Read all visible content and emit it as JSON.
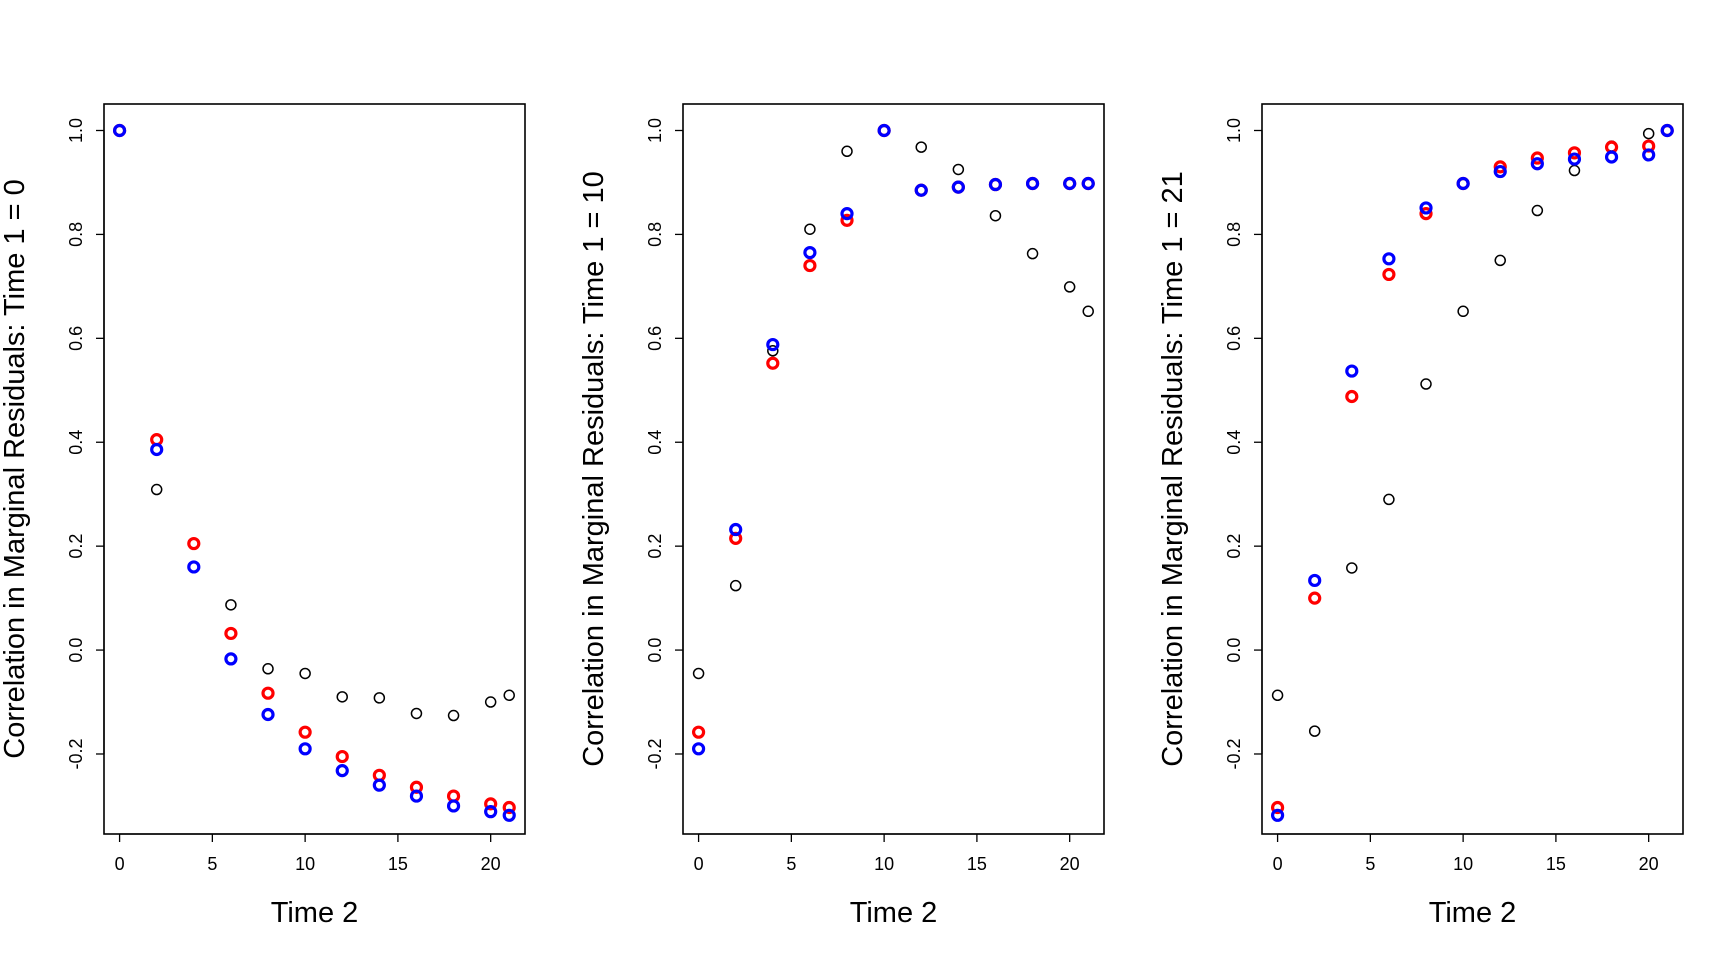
{
  "chart_data": [
    {
      "type": "scatter",
      "xlabel": "Time 2",
      "ylabel": "Correlation in Marginal Residuals: Time 1 = 0",
      "xlim": [
        -0.84,
        21.85
      ],
      "ylim": [
        -0.354,
        1.051
      ],
      "xticks": [
        0,
        5,
        10,
        15,
        20
      ],
      "yticks": [
        -0.2,
        0.0,
        0.2,
        0.4,
        0.6,
        0.8,
        1.0
      ],
      "ytick_labels": [
        "-0.2",
        "0.0",
        "0.2",
        "0.4",
        "0.6",
        "0.8",
        "1.0"
      ],
      "grid": false,
      "x": [
        0,
        2,
        4,
        6,
        8,
        10,
        12,
        14,
        16,
        18,
        20,
        21
      ],
      "series": [
        {
          "color": "#000000",
          "values": [
            1.0,
            0.309,
            0.16,
            0.087,
            -0.036,
            -0.045,
            -0.09,
            -0.092,
            -0.122,
            -0.126,
            -0.1,
            -0.087
          ]
        },
        {
          "color": "#ff0000",
          "values": [
            1.0,
            0.405,
            0.205,
            0.032,
            -0.083,
            -0.158,
            -0.205,
            -0.241,
            -0.264,
            -0.281,
            -0.296,
            -0.303
          ]
        },
        {
          "color": "#0000ff",
          "values": [
            1.0,
            0.386,
            0.16,
            -0.017,
            -0.124,
            -0.19,
            -0.232,
            -0.26,
            -0.281,
            -0.3,
            -0.311,
            -0.318
          ]
        }
      ]
    },
    {
      "type": "scatter",
      "xlabel": "Time 2",
      "ylabel": "Correlation in Marginal Residuals: Time 1 = 10",
      "xlim": [
        -0.84,
        21.85
      ],
      "ylim": [
        -0.354,
        1.051
      ],
      "xticks": [
        0,
        5,
        10,
        15,
        20
      ],
      "yticks": [
        -0.2,
        0.0,
        0.2,
        0.4,
        0.6,
        0.8,
        1.0
      ],
      "ytick_labels": [
        "-0.2",
        "0.0",
        "0.2",
        "0.4",
        "0.6",
        "0.8",
        "1.0"
      ],
      "grid": false,
      "x": [
        0,
        2,
        4,
        6,
        8,
        10,
        12,
        14,
        16,
        18,
        20,
        21
      ],
      "series": [
        {
          "color": "#000000",
          "values": [
            -0.045,
            0.124,
            0.576,
            0.81,
            0.96,
            1.0,
            0.968,
            0.925,
            0.836,
            0.763,
            0.699,
            0.652
          ]
        },
        {
          "color": "#ff0000",
          "values": [
            -0.158,
            0.215,
            0.552,
            0.74,
            0.827,
            1.0,
            0.885,
            0.891,
            0.896,
            0.898,
            0.898,
            0.898
          ]
        },
        {
          "color": "#0000ff",
          "values": [
            -0.19,
            0.232,
            0.588,
            0.765,
            0.84,
            1.0,
            0.885,
            0.891,
            0.896,
            0.898,
            0.898,
            0.898
          ]
        }
      ]
    },
    {
      "type": "scatter",
      "xlabel": "Time 2",
      "ylabel": "Correlation in Marginal Residuals: Time 1 = 21",
      "xlim": [
        -0.84,
        21.85
      ],
      "ylim": [
        -0.354,
        1.051
      ],
      "xticks": [
        0,
        5,
        10,
        15,
        20
      ],
      "yticks": [
        -0.2,
        0.0,
        0.2,
        0.4,
        0.6,
        0.8,
        1.0
      ],
      "ytick_labels": [
        "-0.2",
        "0.0",
        "0.2",
        "0.4",
        "0.6",
        "0.8",
        "1.0"
      ],
      "grid": false,
      "x": [
        0,
        2,
        4,
        6,
        8,
        10,
        12,
        14,
        16,
        18,
        20,
        21
      ],
      "series": [
        {
          "color": "#000000",
          "values": [
            -0.087,
            -0.156,
            0.158,
            0.29,
            0.512,
            0.652,
            0.75,
            0.846,
            0.923,
            0.97,
            0.994,
            1.0
          ]
        },
        {
          "color": "#ff0000",
          "values": [
            -0.303,
            0.1,
            0.488,
            0.723,
            0.84,
            0.898,
            0.93,
            0.947,
            0.957,
            0.968,
            0.97,
            1.0
          ]
        },
        {
          "color": "#0000ff",
          "values": [
            -0.318,
            0.134,
            0.537,
            0.753,
            0.851,
            0.898,
            0.921,
            0.936,
            0.945,
            0.949,
            0.953,
            1.0
          ]
        }
      ]
    }
  ]
}
